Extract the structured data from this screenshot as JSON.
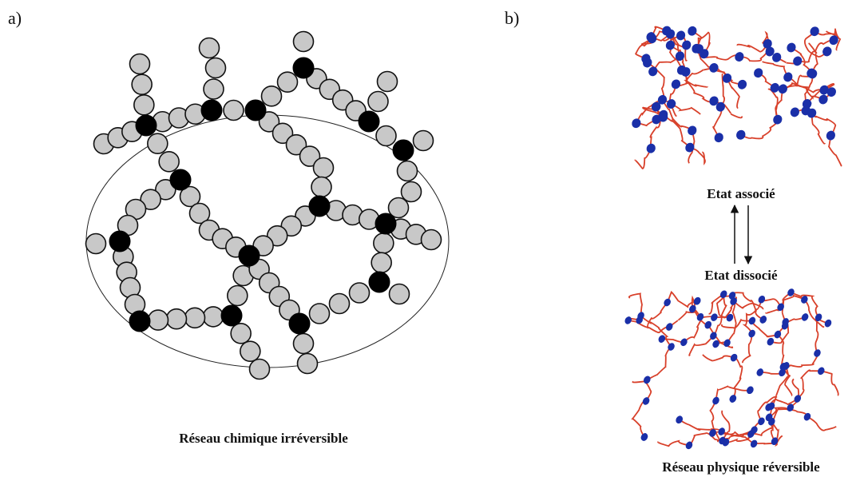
{
  "panel_a": {
    "label": "a)",
    "caption": "Réseau chimique irréversible"
  },
  "panel_b": {
    "label": "b)",
    "top_state": "Etat associé",
    "bottom_state": "Etat dissocié",
    "caption": "Réseau physique réversible"
  }
}
